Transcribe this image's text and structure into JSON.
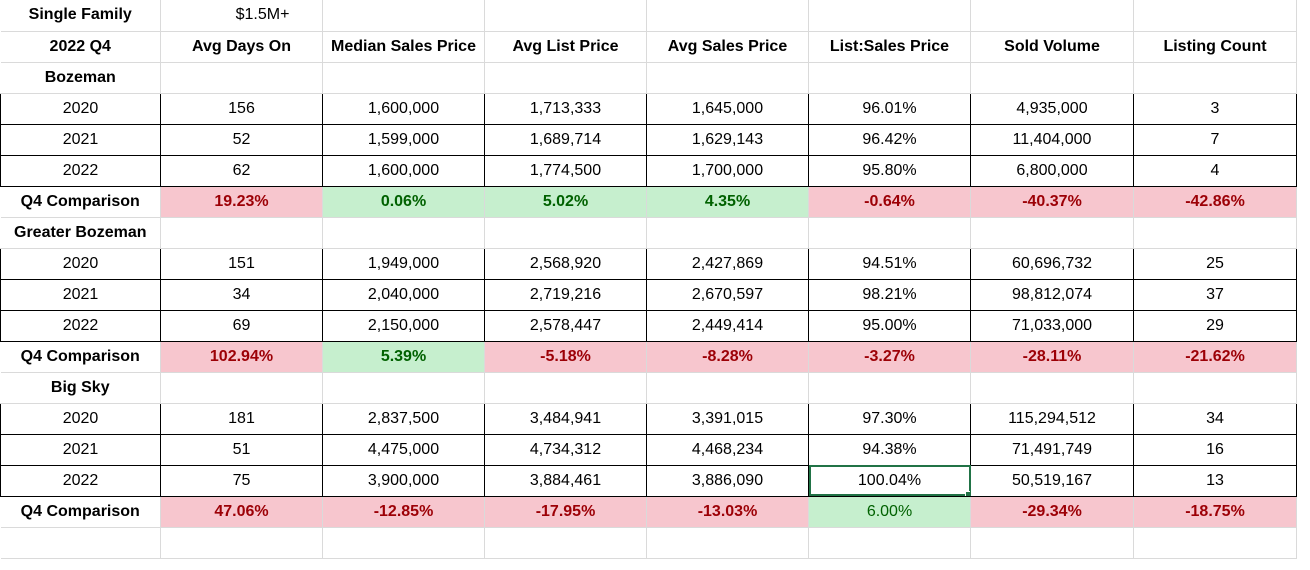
{
  "header": {
    "segment_label": "Single Family",
    "price_band": "$1.5M+",
    "period": "2022 Q4",
    "columns": [
      "Avg Days On",
      "Median Sales Price",
      "Avg List Price",
      "Avg Sales Price",
      "List:Sales Price",
      "Sold Volume",
      "Listing Count"
    ]
  },
  "sections": [
    {
      "name": "Bozeman",
      "rows": [
        {
          "year": "2020",
          "values": [
            "156",
            "1,600,000",
            "1,713,333",
            "1,645,000",
            "96.01%",
            "4,935,000",
            "3"
          ]
        },
        {
          "year": "2021",
          "values": [
            "52",
            "1,599,000",
            "1,689,714",
            "1,629,143",
            "96.42%",
            "11,404,000",
            "7"
          ]
        },
        {
          "year": "2022",
          "values": [
            "62",
            "1,600,000",
            "1,774,500",
            "1,700,000",
            "95.80%",
            "6,800,000",
            "4"
          ]
        }
      ],
      "comparison": {
        "label": "Q4 Comparison",
        "values": [
          "19.23%",
          "0.06%",
          "5.02%",
          "4.35%",
          "-0.64%",
          "-40.37%",
          "-42.86%"
        ],
        "tones": [
          "red",
          "green",
          "green",
          "green",
          "red",
          "red",
          "red"
        ]
      }
    },
    {
      "name": "Greater Bozeman",
      "rows": [
        {
          "year": "2020",
          "values": [
            "151",
            "1,949,000",
            "2,568,920",
            "2,427,869",
            "94.51%",
            "60,696,732",
            "25"
          ]
        },
        {
          "year": "2021",
          "values": [
            "34",
            "2,040,000",
            "2,719,216",
            "2,670,597",
            "98.21%",
            "98,812,074",
            "37"
          ]
        },
        {
          "year": "2022",
          "values": [
            "69",
            "2,150,000",
            "2,578,447",
            "2,449,414",
            "95.00%",
            "71,033,000",
            "29"
          ]
        }
      ],
      "comparison": {
        "label": "Q4 Comparison",
        "values": [
          "102.94%",
          "5.39%",
          "-5.18%",
          "-8.28%",
          "-3.27%",
          "-28.11%",
          "-21.62%"
        ],
        "tones": [
          "red",
          "green",
          "red",
          "red",
          "red",
          "red",
          "red"
        ]
      }
    },
    {
      "name": "Big Sky",
      "rows": [
        {
          "year": "2020",
          "values": [
            "181",
            "2,837,500",
            "3,484,941",
            "3,391,015",
            "97.30%",
            "115,294,512",
            "34"
          ]
        },
        {
          "year": "2021",
          "values": [
            "51",
            "4,475,000",
            "4,734,312",
            "4,468,234",
            "94.38%",
            "71,491,749",
            "16"
          ]
        },
        {
          "year": "2022",
          "values": [
            "75",
            "3,900,000",
            "3,884,461",
            "3,886,090",
            "100.04%",
            "50,519,167",
            "13"
          ]
        }
      ],
      "comparison": {
        "label": "Q4 Comparison",
        "values": [
          "47.06%",
          "-12.85%",
          "-17.95%",
          "-13.03%",
          "6.00%",
          "-29.34%",
          "-18.75%"
        ],
        "tones": [
          "red",
          "red",
          "red",
          "red",
          "green-plain",
          "red",
          "red"
        ]
      }
    }
  ],
  "selection": {
    "section": 2,
    "row": 2,
    "column": 4
  }
}
